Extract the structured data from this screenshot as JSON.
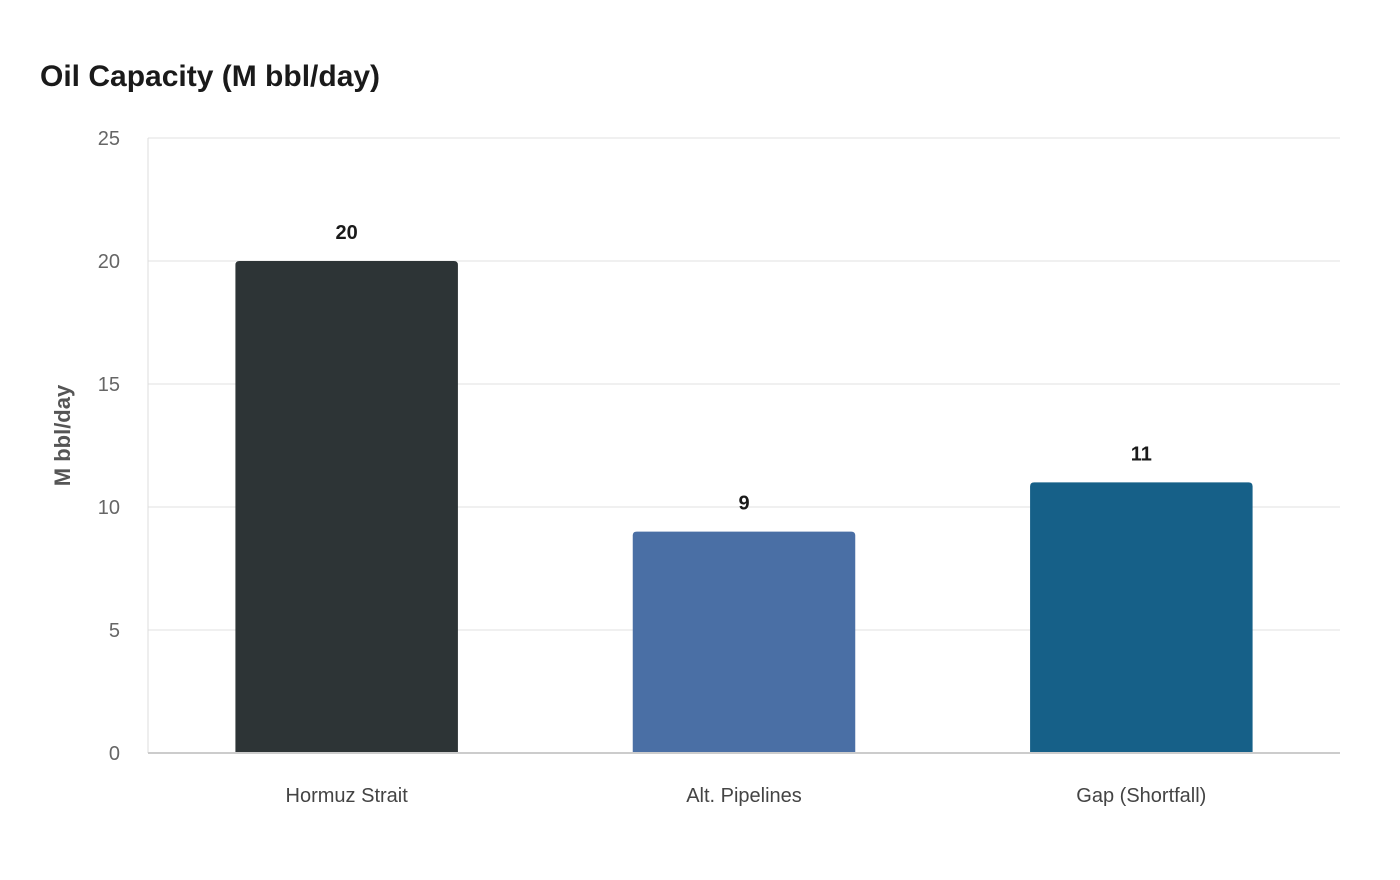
{
  "chart_data": {
    "type": "bar",
    "title": "Oil Capacity (M bbl/day)",
    "xlabel": "",
    "ylabel": "M bbl/day",
    "categories": [
      "Hormuz Strait",
      "Alt. Pipelines",
      "Gap (Shortfall)"
    ],
    "values": [
      20,
      9,
      11
    ],
    "bar_colors": [
      "#2d3436",
      "#4a6fa5",
      "#166088"
    ],
    "ylim": [
      0,
      25
    ],
    "yticks": [
      0,
      5,
      10,
      15,
      20,
      25
    ],
    "grid": true,
    "data_labels": true
  }
}
